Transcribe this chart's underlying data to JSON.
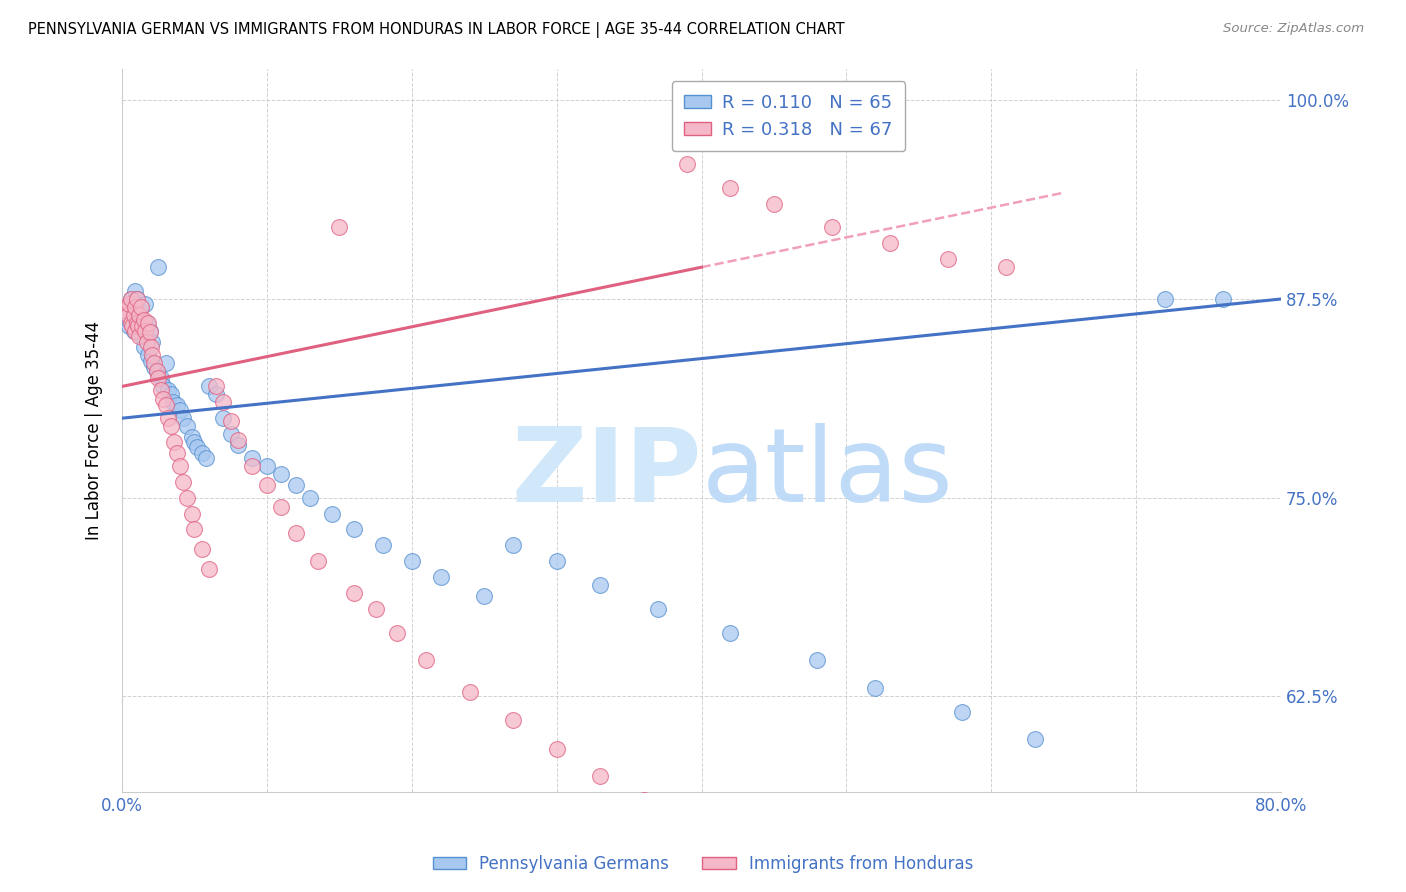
{
  "title": "PENNSYLVANIA GERMAN VS IMMIGRANTS FROM HONDURAS IN LABOR FORCE | AGE 35-44 CORRELATION CHART",
  "source_text": "Source: ZipAtlas.com",
  "ylabel": "In Labor Force | Age 35-44",
  "xlim": [
    0.0,
    0.8
  ],
  "ylim": [
    0.565,
    1.02
  ],
  "ytick_positions": [
    0.625,
    0.75,
    0.875,
    1.0
  ],
  "yticklabels": [
    "62.5%",
    "75.0%",
    "87.5%",
    "100.0%"
  ],
  "R_blue": 0.11,
  "N_blue": 65,
  "R_pink": 0.318,
  "N_pink": 67,
  "blue_color": "#a8c8f0",
  "blue_edge": "#5590d0",
  "pink_color": "#f5b8c8",
  "pink_edge": "#e06080",
  "line_blue": "#4472c4",
  "line_pink": "#e06080",
  "line_dashed_color": "#f0a0b8",
  "watermark_zip": "ZIP",
  "watermark_atlas": "atlas",
  "watermark_color": "#d0e8fa",
  "blue_scatter_x": [
    0.003,
    0.004,
    0.005,
    0.006,
    0.007,
    0.008,
    0.009,
    0.01,
    0.01,
    0.011,
    0.012,
    0.013,
    0.014,
    0.015,
    0.016,
    0.017,
    0.018,
    0.019,
    0.02,
    0.021,
    0.022,
    0.024,
    0.025,
    0.027,
    0.028,
    0.03,
    0.032,
    0.034,
    0.035,
    0.038,
    0.04,
    0.042,
    0.045,
    0.048,
    0.05,
    0.052,
    0.055,
    0.058,
    0.06,
    0.065,
    0.07,
    0.075,
    0.08,
    0.09,
    0.1,
    0.11,
    0.12,
    0.13,
    0.145,
    0.16,
    0.18,
    0.2,
    0.22,
    0.25,
    0.27,
    0.3,
    0.33,
    0.37,
    0.42,
    0.48,
    0.52,
    0.58,
    0.63,
    0.72,
    0.76
  ],
  "blue_scatter_y": [
    0.87,
    0.862,
    0.858,
    0.875,
    0.868,
    0.855,
    0.88,
    0.86,
    0.875,
    0.865,
    0.858,
    0.87,
    0.852,
    0.845,
    0.872,
    0.86,
    0.84,
    0.855,
    0.836,
    0.848,
    0.832,
    0.83,
    0.895,
    0.825,
    0.82,
    0.835,
    0.818,
    0.815,
    0.81,
    0.808,
    0.805,
    0.8,
    0.795,
    0.788,
    0.785,
    0.782,
    0.778,
    0.775,
    0.82,
    0.815,
    0.8,
    0.79,
    0.783,
    0.775,
    0.77,
    0.765,
    0.758,
    0.75,
    0.74,
    0.73,
    0.72,
    0.71,
    0.7,
    0.688,
    0.72,
    0.71,
    0.695,
    0.68,
    0.665,
    0.648,
    0.63,
    0.615,
    0.598,
    0.875,
    0.875
  ],
  "pink_scatter_x": [
    0.002,
    0.003,
    0.004,
    0.005,
    0.006,
    0.006,
    0.007,
    0.008,
    0.009,
    0.009,
    0.01,
    0.01,
    0.011,
    0.012,
    0.012,
    0.013,
    0.014,
    0.015,
    0.016,
    0.017,
    0.018,
    0.019,
    0.02,
    0.021,
    0.022,
    0.024,
    0.025,
    0.027,
    0.028,
    0.03,
    0.032,
    0.034,
    0.036,
    0.038,
    0.04,
    0.042,
    0.045,
    0.048,
    0.05,
    0.055,
    0.06,
    0.065,
    0.07,
    0.075,
    0.08,
    0.09,
    0.1,
    0.11,
    0.12,
    0.135,
    0.15,
    0.16,
    0.175,
    0.19,
    0.21,
    0.24,
    0.27,
    0.3,
    0.33,
    0.36,
    0.39,
    0.42,
    0.45,
    0.49,
    0.53,
    0.57,
    0.61
  ],
  "pink_scatter_y": [
    0.87,
    0.868,
    0.865,
    0.872,
    0.86,
    0.875,
    0.858,
    0.865,
    0.855,
    0.87,
    0.86,
    0.875,
    0.858,
    0.852,
    0.865,
    0.87,
    0.858,
    0.862,
    0.855,
    0.848,
    0.86,
    0.854,
    0.845,
    0.84,
    0.835,
    0.83,
    0.825,
    0.818,
    0.812,
    0.808,
    0.8,
    0.795,
    0.785,
    0.778,
    0.77,
    0.76,
    0.75,
    0.74,
    0.73,
    0.718,
    0.705,
    0.82,
    0.81,
    0.798,
    0.786,
    0.77,
    0.758,
    0.744,
    0.728,
    0.71,
    0.92,
    0.69,
    0.68,
    0.665,
    0.648,
    0.628,
    0.61,
    0.592,
    0.575,
    0.56,
    0.96,
    0.945,
    0.935,
    0.92,
    0.91,
    0.9,
    0.895
  ]
}
